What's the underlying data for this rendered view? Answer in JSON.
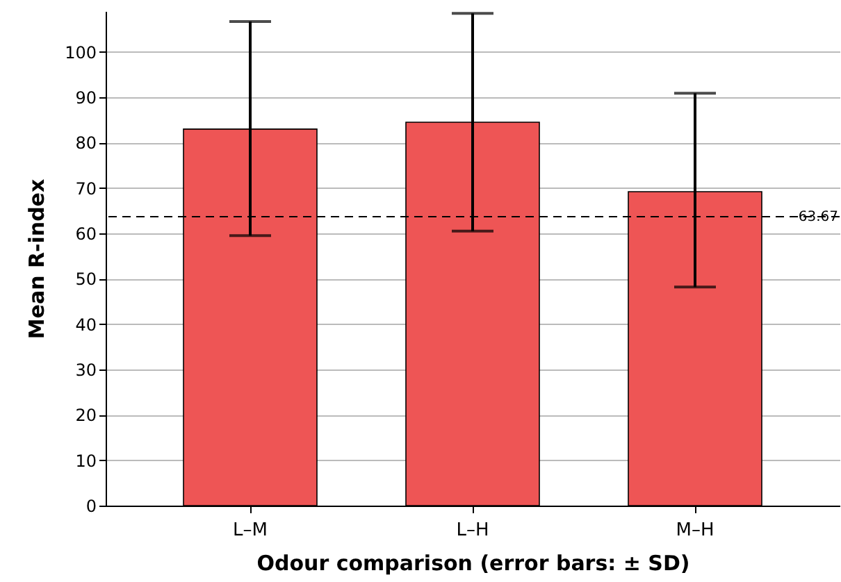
{
  "chart_data": {
    "type": "bar",
    "xlabel": "Odour comparison (error bars: ± SD)",
    "ylabel": "Mean R-index",
    "categories": [
      "L–M",
      "L–H",
      "M–H"
    ],
    "values": [
      83,
      84.5,
      69.2
    ],
    "errors": [
      [
        59.5,
        106.7
      ],
      [
        60.5,
        108.5
      ],
      [
        48.2,
        90.9
      ]
    ],
    "color": "#ee5555",
    "ylim": [
      0,
      109
    ],
    "yticks": [
      0,
      10,
      20,
      30,
      40,
      50,
      60,
      70,
      80,
      90,
      100
    ],
    "grid": "y",
    "ref_lines": [
      {
        "axis": "y",
        "value": 63.67,
        "label": "63.67",
        "line_style": "dashed"
      }
    ]
  }
}
